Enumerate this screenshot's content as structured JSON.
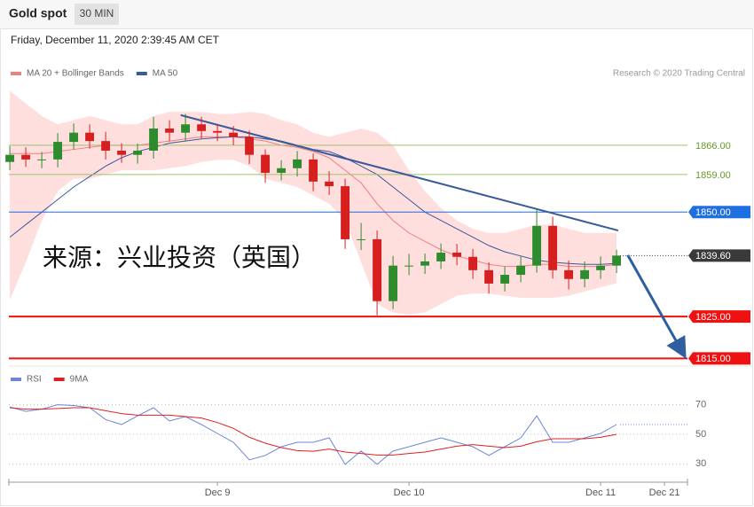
{
  "header": {
    "title": "Gold spot",
    "interval": "30 MIN",
    "timestamp": "Friday, December 11, 2020 2:39:45 AM CET",
    "credit": "Research © 2020 Trading Central",
    "watermark": "来源：兴业投资（英国）"
  },
  "chart_data": [
    {
      "type": "candlestick",
      "x": [
        0,
        1,
        2,
        3,
        4,
        5,
        6,
        7,
        8,
        9,
        10,
        11,
        12,
        13,
        14,
        15,
        16,
        17,
        18,
        19,
        20,
        21,
        22,
        23,
        24,
        25,
        26,
        27,
        28,
        29,
        30,
        31,
        32,
        33,
        34,
        35,
        36,
        37,
        38
      ],
      "open": [
        1862.0,
        1863.7,
        1862.6,
        1862.6,
        1866.8,
        1869.0,
        1867.0,
        1864.7,
        1863.7,
        1864.7,
        1870.0,
        1869.0,
        1871.0,
        1869.4,
        1869.0,
        1868.0,
        1863.7,
        1859.4,
        1860.5,
        1862.6,
        1857.3,
        1856.2,
        1843.5,
        1843.5,
        1828.7,
        1837.2,
        1837.2,
        1838.2,
        1840.3,
        1839.3,
        1836.1,
        1832.9,
        1835.0,
        1837.2,
        1846.7,
        1836.1,
        1834.0,
        1836.1,
        1837.2
      ],
      "high": [
        1865.8,
        1865.5,
        1864.4,
        1868.9,
        1871.2,
        1871.0,
        1869.2,
        1866.5,
        1866.4,
        1872.8,
        1872.0,
        1873.5,
        1872.8,
        1871.0,
        1870.6,
        1869.5,
        1865.0,
        1862.4,
        1864.6,
        1864.0,
        1859.8,
        1858.0,
        1847.4,
        1845.6,
        1839.5,
        1840.0,
        1840.1,
        1842.5,
        1842.4,
        1841.2,
        1838.0,
        1837.0,
        1839.4,
        1850.9,
        1848.9,
        1838.4,
        1838.2,
        1839.4,
        1841.0
      ],
      "low": [
        1860.0,
        1860.8,
        1860.5,
        1860.7,
        1865.0,
        1865.2,
        1862.6,
        1861.8,
        1861.6,
        1862.8,
        1866.9,
        1867.0,
        1867.5,
        1867.0,
        1866.0,
        1861.5,
        1857.0,
        1857.6,
        1858.5,
        1855.0,
        1854.1,
        1841.2,
        1840.9,
        1825.3,
        1826.8,
        1834.9,
        1835.2,
        1836.4,
        1837.3,
        1834.0,
        1830.5,
        1831.0,
        1833.2,
        1835.5,
        1834.1,
        1831.5,
        1832.0,
        1834.0,
        1835.4
      ],
      "close": [
        1863.7,
        1862.6,
        1862.6,
        1866.8,
        1869.0,
        1867.0,
        1864.7,
        1863.7,
        1864.7,
        1870.0,
        1869.0,
        1871.0,
        1869.4,
        1869.0,
        1868.0,
        1863.7,
        1859.4,
        1860.5,
        1862.6,
        1857.3,
        1856.2,
        1843.5,
        1843.5,
        1828.7,
        1837.2,
        1837.2,
        1838.2,
        1840.3,
        1839.3,
        1836.1,
        1832.9,
        1835.0,
        1837.2,
        1846.7,
        1836.1,
        1834.0,
        1836.1,
        1837.2,
        1839.6
      ],
      "up_color": "#2e8b2e",
      "down_color": "#d62020",
      "series": [
        {
          "name": "MA 20 + Bollinger Bands",
          "color": "#f08080",
          "band_color": "#ffdede",
          "values": [
            1864,
            1864,
            1864,
            1864.5,
            1865,
            1865.5,
            1866,
            1866,
            1866,
            1866.5,
            1867,
            1867.5,
            1868,
            1868,
            1868,
            1867.5,
            1867,
            1866,
            1865.5,
            1864.5,
            1863,
            1860,
            1857,
            1852,
            1848,
            1845,
            1843,
            1841,
            1839.5,
            1838.5,
            1837.5,
            1837,
            1837,
            1837.5,
            1837.5,
            1837,
            1837,
            1837,
            1837.5
          ],
          "upper": [
            1879,
            1876,
            1873,
            1871,
            1872,
            1873,
            1872,
            1871,
            1871,
            1873,
            1874,
            1874,
            1874,
            1873.5,
            1873.5,
            1874,
            1873.5,
            1872,
            1871,
            1869,
            1868,
            1869,
            1870,
            1869,
            1866,
            1860,
            1855,
            1851,
            1848,
            1846,
            1845,
            1845,
            1846,
            1847,
            1847,
            1846,
            1845,
            1845,
            1845
          ],
          "lower": [
            1829,
            1838,
            1848,
            1855,
            1858,
            1858,
            1859,
            1860,
            1860,
            1860,
            1860.5,
            1861,
            1862,
            1862.5,
            1862.5,
            1861,
            1858,
            1857,
            1856,
            1854,
            1852,
            1848,
            1838,
            1828,
            1826,
            1825.5,
            1826,
            1828,
            1830,
            1830.5,
            1830.5,
            1830,
            1829.5,
            1829.5,
            1829.5,
            1830,
            1831,
            1832,
            1833
          ]
        },
        {
          "name": "MA 50",
          "color": "#3a5a9a",
          "values": [
            1844,
            1847,
            1850,
            1853,
            1856,
            1858.5,
            1861,
            1863,
            1864.5,
            1865.5,
            1866.5,
            1867,
            1867.5,
            1867.8,
            1868,
            1868,
            1867.5,
            1867,
            1866,
            1865,
            1864.5,
            1863,
            1861,
            1859,
            1856,
            1853,
            1850,
            1848,
            1846,
            1844,
            1842,
            1840.5,
            1839.5,
            1838.5,
            1838,
            1837.7,
            1837.5,
            1837.5,
            1837.7
          ]
        }
      ],
      "levels": [
        {
          "value": 1866,
          "label": "1866.00",
          "color": "#9cc36a",
          "style": "text"
        },
        {
          "value": 1859,
          "label": "1859.00",
          "color": "#9cc36a",
          "style": "text"
        },
        {
          "value": 1850,
          "label": "1850.00",
          "color": "#1e6fe0",
          "style": "box"
        },
        {
          "value": 1839.6,
          "label": "1839.60",
          "color": "#3a3a3a",
          "style": "dotted"
        },
        {
          "value": 1825,
          "label": "1825.00",
          "color": "#ee1111",
          "style": "box"
        },
        {
          "value": 1815,
          "label": "1815.00",
          "color": "#ee1111",
          "style": "box"
        }
      ],
      "trendline": {
        "x": [
          10.7,
          38.1
        ],
        "y": [
          1873.2,
          1845.6
        ],
        "color": "#3a5a9a"
      },
      "arrow": {
        "x": [
          38.7,
          42.2
        ],
        "y": [
          1839.7,
          1816
        ],
        "color": "#2f5f9e"
      },
      "xlim": [
        -0.06,
        42.44
      ],
      "ylim": [
        1813.8,
        1880.6
      ]
    },
    {
      "type": "line",
      "x": [
        0,
        1,
        2,
        3,
        4,
        5,
        6,
        7,
        8,
        9,
        10,
        11,
        12,
        13,
        14,
        15,
        16,
        17,
        18,
        19,
        20,
        21,
        22,
        23,
        24,
        25,
        26,
        27,
        28,
        29,
        30,
        31,
        32,
        33,
        34,
        35,
        36,
        37,
        38
      ],
      "series": [
        {
          "name": "RSI",
          "color": "#6b86d6",
          "values": [
            68.5,
            65.5,
            67,
            70,
            69.5,
            68,
            60,
            56.6,
            62.5,
            68,
            59,
            62,
            56.6,
            50.6,
            44.6,
            32.7,
            35.7,
            41.6,
            44.6,
            44.6,
            47.6,
            29.7,
            38.7,
            29.7,
            38.7,
            41.6,
            44.6,
            47.6,
            44.6,
            41.6,
            35.7,
            41.6,
            47.6,
            62.5,
            44.6,
            44.6,
            47.6,
            50.6,
            56.6
          ]
        },
        {
          "name": "9MA",
          "color": "#e02020",
          "values": [
            68,
            67,
            67,
            67.5,
            68,
            68,
            66,
            64,
            63,
            63,
            63,
            62,
            61,
            58,
            54,
            48,
            44,
            41,
            39,
            38.5,
            40,
            38,
            37,
            36,
            36,
            37,
            38,
            40,
            42,
            43,
            42,
            41,
            42,
            45,
            47,
            47,
            47,
            48,
            50
          ]
        }
      ],
      "xlim": [
        -0.06,
        42.44
      ],
      "ylim": [
        20,
        80
      ],
      "yticks": [
        30,
        50,
        70
      ],
      "grid": true,
      "xticks": [
        {
          "value": 13,
          "label": "Dec 9"
        },
        {
          "value": 25,
          "label": "Dec 10"
        },
        {
          "value": 37,
          "label": "Dec 11"
        },
        {
          "value": 41,
          "label": "Dec 21"
        }
      ]
    }
  ]
}
